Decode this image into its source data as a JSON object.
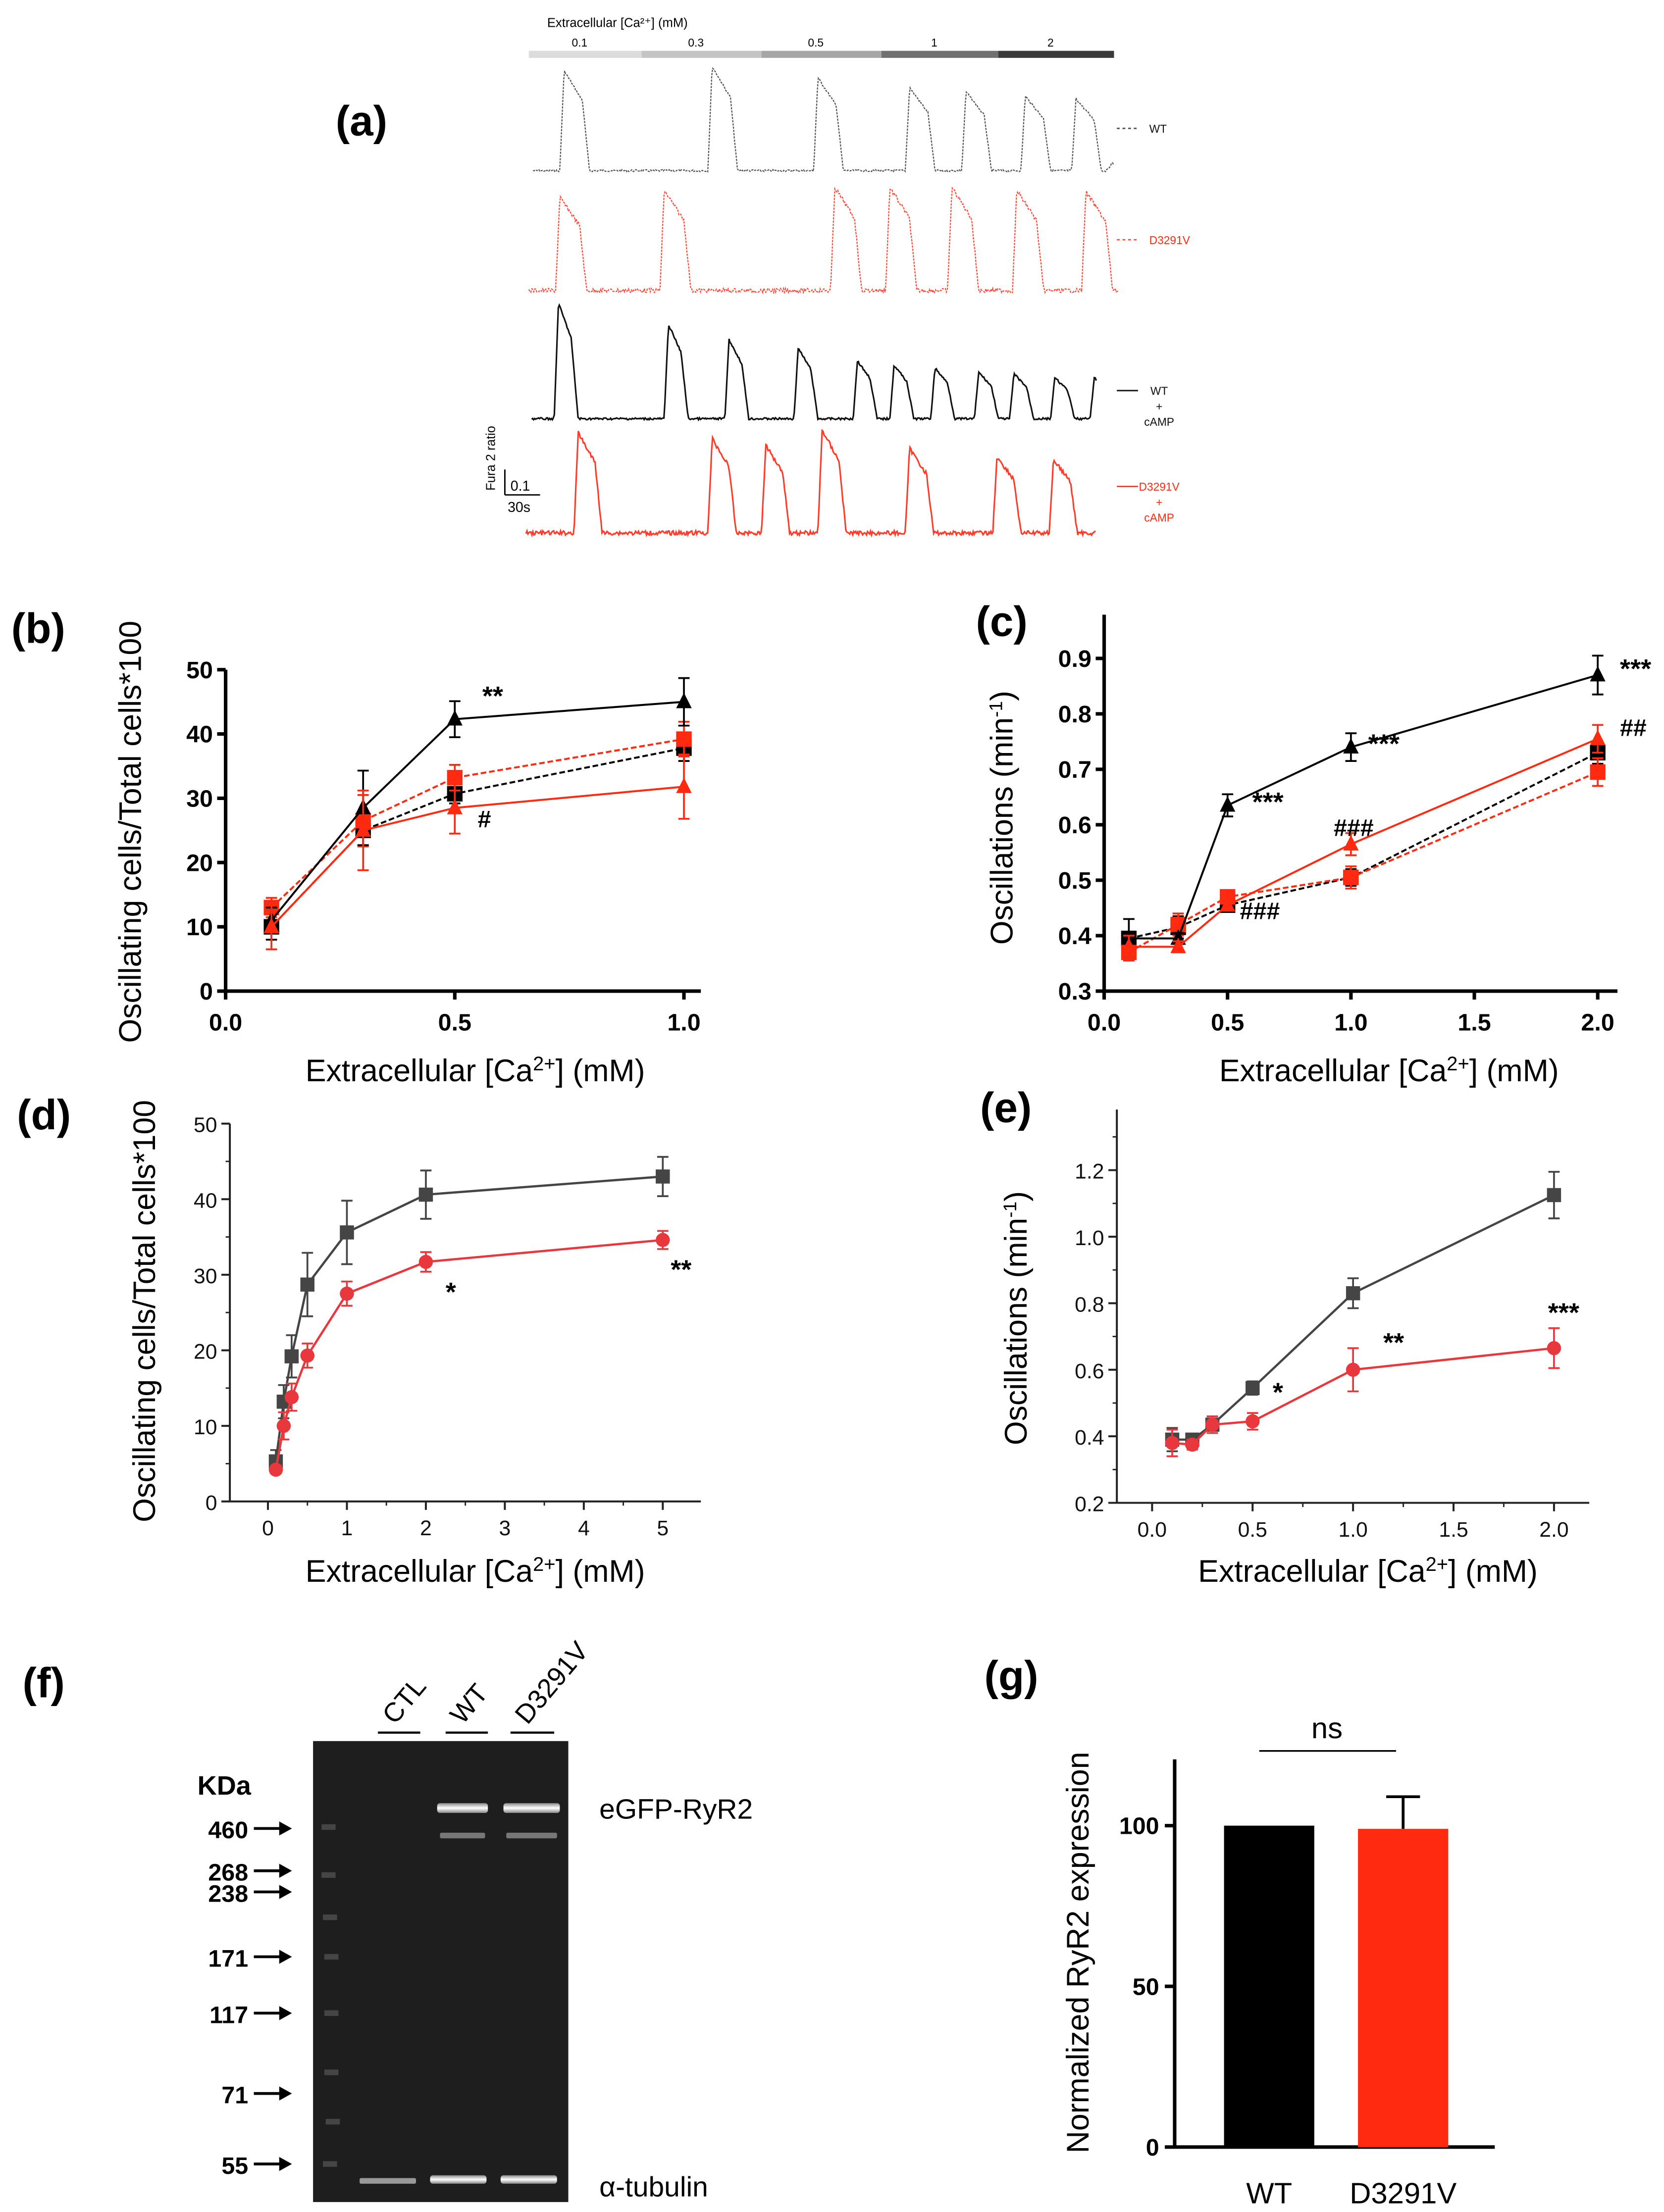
{
  "panels": {
    "a": {
      "label": "(a)",
      "conc_title": "Extracellular [Ca²⁺] (mM)",
      "conc_steps": [
        {
          "label": "0.1",
          "color": "#dcdcdc"
        },
        {
          "label": "0.3",
          "color": "#c4c4c4"
        },
        {
          "label": "0.5",
          "color": "#a6a6a6"
        },
        {
          "label": "1",
          "color": "#707070"
        },
        {
          "label": "2",
          "color": "#3a3a3a"
        }
      ],
      "scale_y_label": "Fura 2 ratio",
      "scale_y_value": "0.1",
      "scale_x_value": "30s",
      "traces": [
        {
          "name": "WT",
          "lines": [
            "WT"
          ],
          "color": "#555555",
          "dash": true
        },
        {
          "name": "D3291V",
          "lines": [
            "D3291V"
          ],
          "color": "#ff4a3a",
          "dash": true
        },
        {
          "name": "WT + cAMP",
          "lines": [
            "WT",
            "+",
            "cAMP"
          ],
          "color": "#111111",
          "dash": false
        },
        {
          "name": "D3291V + cAMP",
          "lines": [
            "D3291V",
            "+",
            "cAMP"
          ],
          "color": "#ff3b2a",
          "dash": false
        }
      ]
    },
    "b": {
      "label": "(b)"
    },
    "c": {
      "label": "(c)"
    },
    "d": {
      "label": "(d)"
    },
    "e": {
      "label": "(e)"
    },
    "f": {
      "label": "(f)",
      "kda_label": "KDa",
      "lanes": [
        "CTL",
        "WT",
        "D3291V"
      ],
      "markers": [
        "460",
        "268",
        "238",
        "171",
        "117",
        "71",
        "55"
      ],
      "band_labels": {
        "top": "eGFP-RyR2",
        "bottom": "α-tubulin"
      }
    },
    "g": {
      "label": "(g)"
    }
  },
  "colors": {
    "black": "#000000",
    "red": "#ff2a10",
    "gray": "#454545",
    "red_light": "#e8383d"
  },
  "chart_data": [
    {
      "id": "b",
      "type": "line",
      "xlabel": "Extracellular [Ca2+] (mM)",
      "ylabel": "Oscillating cells/Total cells*100",
      "xlim": [
        0,
        1.0
      ],
      "ylim": [
        0,
        50
      ],
      "xticks": [
        "0.0",
        "0.5",
        "1.0"
      ],
      "yticks": [
        "0",
        "10",
        "20",
        "30",
        "40",
        "50"
      ],
      "x": [
        0.1,
        0.3,
        0.5,
        1.0
      ],
      "series": [
        {
          "name": "WT",
          "color": "#000000",
          "dash": true,
          "marker": "square",
          "values": [
            10,
            25,
            30.7,
            37.8
          ],
          "errors": [
            2,
            2.3,
            1.5,
            2
          ]
        },
        {
          "name": "D3291V",
          "color": "#ff2a10",
          "dash": true,
          "marker": "square",
          "values": [
            13,
            26.5,
            33.2,
            39.2
          ],
          "errors": [
            1.5,
            4,
            2,
            2.7
          ]
        },
        {
          "name": "WT + cAMP",
          "color": "#000000",
          "dash": false,
          "marker": "triangle",
          "values": [
            11,
            28.5,
            42.3,
            45
          ],
          "errors": [
            2,
            5.8,
            2.8,
            3.7
          ]
        },
        {
          "name": "D3291V + cAMP",
          "color": "#ff2a10",
          "dash": false,
          "marker": "triangle",
          "values": [
            10,
            25,
            28.5,
            31.8
          ],
          "errors": [
            3.5,
            6.2,
            4,
            5
          ]
        }
      ],
      "annotations": [
        {
          "text": "**",
          "x": 0.56,
          "y": 44.5
        },
        {
          "text": "#",
          "x": 0.55,
          "y": 25.5
        }
      ]
    },
    {
      "id": "c",
      "type": "line",
      "xlabel": "Extracellular [Ca2+] (mM)",
      "ylabel": "Oscillations (min-1)",
      "xlim": [
        0,
        2.0
      ],
      "ylim": [
        0.3,
        0.95
      ],
      "xticks": [
        "0.0",
        "0.5",
        "1.0",
        "1.5",
        "2.0"
      ],
      "yticks": [
        "0.3",
        "0.4",
        "0.5",
        "0.6",
        "0.7",
        "0.8",
        "0.9"
      ],
      "x": [
        0.1,
        0.3,
        0.5,
        1.0,
        2.0
      ],
      "series": [
        {
          "name": "WT",
          "color": "#000000",
          "dash": true,
          "marker": "square",
          "values": [
            0.395,
            0.415,
            0.455,
            0.505,
            0.73
          ],
          "errors": [
            0.012,
            0.02,
            0.01,
            0.015,
            0.02
          ]
        },
        {
          "name": "D3291V",
          "color": "#ff2a10",
          "dash": true,
          "marker": "square",
          "values": [
            0.37,
            0.42,
            0.47,
            0.505,
            0.695
          ],
          "errors": [
            0.015,
            0.02,
            0.012,
            0.02,
            0.025
          ]
        },
        {
          "name": "WT + cAMP",
          "color": "#000000",
          "dash": false,
          "marker": "triangle",
          "values": [
            0.395,
            0.395,
            0.635,
            0.74,
            0.87
          ],
          "errors": [
            0.035,
            0.01,
            0.02,
            0.025,
            0.035
          ]
        },
        {
          "name": "D3291V + cAMP",
          "color": "#ff2a10",
          "dash": false,
          "marker": "triangle",
          "values": [
            0.38,
            0.38,
            0.455,
            0.565,
            0.755
          ],
          "errors": [
            0.02,
            0.01,
            0.01,
            0.02,
            0.025
          ]
        }
      ],
      "annotations": [
        {
          "text": "***",
          "x": 0.6,
          "y": 0.625
        },
        {
          "text": "***",
          "x": 1.07,
          "y": 0.73
        },
        {
          "text": "***",
          "x": 2.09,
          "y": 0.865
        },
        {
          "text": "###",
          "x": 0.55,
          "y": 0.43
        },
        {
          "text": "###",
          "x": 0.93,
          "y": 0.58
        },
        {
          "text": "##",
          "x": 2.09,
          "y": 0.76
        }
      ]
    },
    {
      "id": "d",
      "type": "line",
      "xlabel": "Extracellular [Ca2+] (mM)",
      "ylabel": "Oscillating cells/Total cells*100",
      "xlim": [
        -0.5,
        5.5
      ],
      "ylim": [
        0,
        50
      ],
      "xticks": [
        "0",
        "1",
        "2",
        "3",
        "4",
        "5"
      ],
      "yticks": [
        "0",
        "10",
        "20",
        "30",
        "40",
        "50"
      ],
      "x": [
        0.1,
        0.2,
        0.3,
        0.5,
        1,
        2,
        5
      ],
      "series": [
        {
          "name": "WT",
          "color": "#454545",
          "dash": false,
          "marker": "square",
          "values": [
            5.3,
            13.2,
            19.2,
            28.7,
            35.6,
            40.6,
            43
          ],
          "errors": [
            1.5,
            2.2,
            2.8,
            4.2,
            4.2,
            3.2,
            2.6
          ]
        },
        {
          "name": "D3291V",
          "color": "#e8383d",
          "dash": false,
          "marker": "circle",
          "values": [
            4.2,
            10,
            13.8,
            19.3,
            27.5,
            31.7,
            34.6
          ],
          "errors": [
            0.5,
            1.8,
            1.8,
            1.6,
            1.6,
            1.3,
            1.2
          ]
        }
      ],
      "annotations": [
        {
          "text": "*",
          "x": 2.25,
          "y": 26.5
        },
        {
          "text": "**",
          "x": 5.1,
          "y": 29.5
        }
      ]
    },
    {
      "id": "e",
      "type": "line",
      "xlabel": "Extracellular [Ca2+] (mM)",
      "ylabel": "Oscillations (min-1)",
      "xlim": [
        -0.25,
        2.25
      ],
      "ylim": [
        0.2,
        1.3
      ],
      "xticks": [
        "0.0",
        "0.5",
        "1.0",
        "1.5",
        "2.0"
      ],
      "yticks": [
        "0.2",
        "0.4",
        "0.6",
        "0.8",
        "1.0",
        "1.2"
      ],
      "x": [
        0.1,
        0.2,
        0.3,
        0.5,
        1.0,
        2.0
      ],
      "series": [
        {
          "name": "WT",
          "color": "#454545",
          "dash": false,
          "marker": "square",
          "values": [
            0.39,
            0.39,
            0.435,
            0.545,
            0.83,
            1.125
          ],
          "errors": [
            0.035,
            0.015,
            0.025,
            0.02,
            0.045,
            0.07
          ]
        },
        {
          "name": "D3291V",
          "color": "#e8383d",
          "dash": false,
          "marker": "circle",
          "values": [
            0.38,
            0.375,
            0.435,
            0.445,
            0.6,
            0.665
          ],
          "errors": [
            0.04,
            0.015,
            0.025,
            0.025,
            0.065,
            0.06
          ]
        }
      ],
      "annotations": [
        {
          "text": "*",
          "x": 0.6,
          "y": 0.505
        },
        {
          "text": "**",
          "x": 1.15,
          "y": 0.655
        },
        {
          "text": "***",
          "x": 1.97,
          "y": 0.745
        }
      ]
    },
    {
      "id": "g",
      "type": "bar",
      "xlabel": "",
      "ylabel": "Normalized RyR2 expression",
      "ylim": [
        0,
        120
      ],
      "yticks": [
        "0",
        "50",
        "100"
      ],
      "categories": [
        "WT",
        "D3291V"
      ],
      "values": [
        100,
        99
      ],
      "errors": [
        0,
        10
      ],
      "colors": [
        "#000000",
        "#ff2a10"
      ],
      "annotations": [
        {
          "text": "ns"
        }
      ]
    }
  ]
}
